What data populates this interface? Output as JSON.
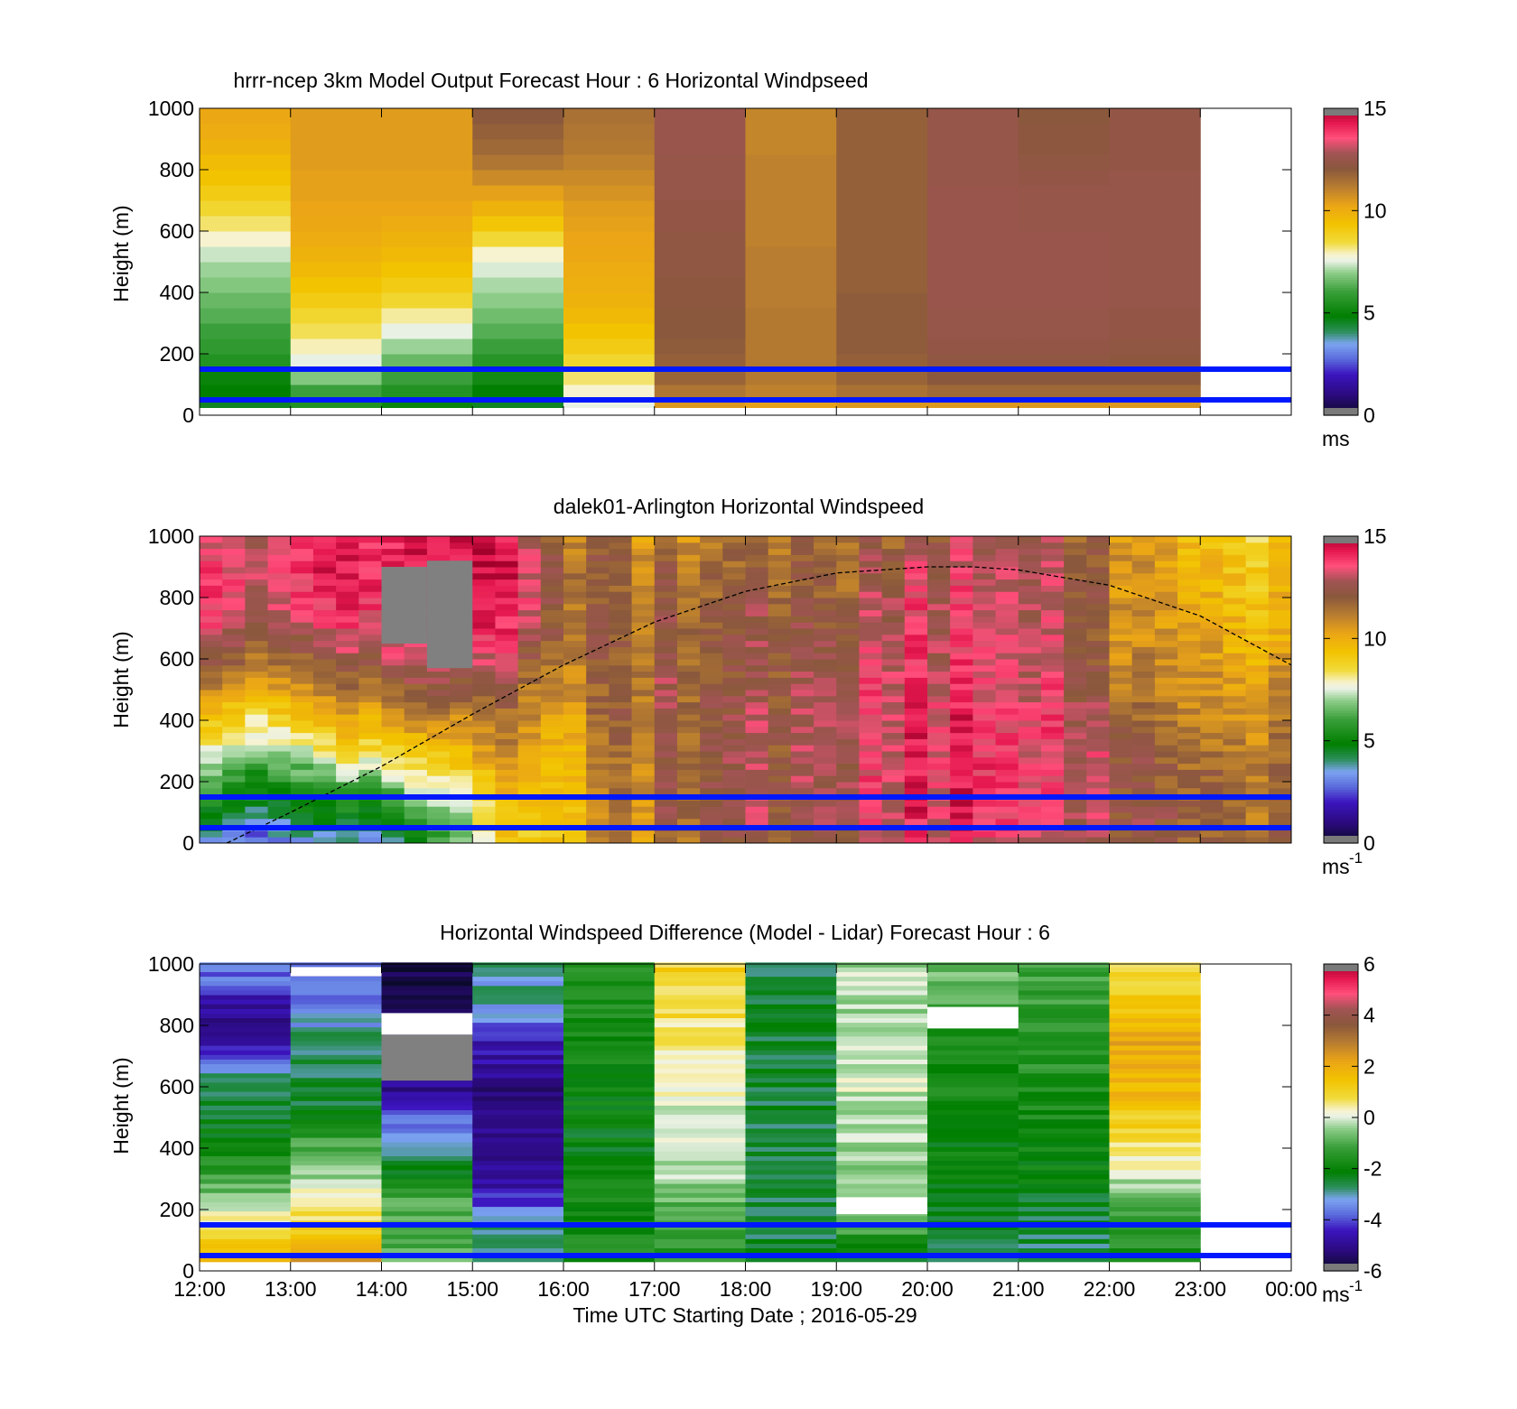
{
  "chart_data": [
    {
      "type": "heatmap",
      "title": "hrrr-ncep 3km Model Output   Forecast Hour : 6 Horizontal Windpseed",
      "ylabel": "Height (m)",
      "xlabel": "",
      "ylim": [
        0,
        1000
      ],
      "yticks": [
        "0",
        "200",
        "400",
        "600",
        "800",
        "1000"
      ],
      "xlim_hours": [
        12,
        24
      ],
      "colorbar": {
        "ticks": [
          "0",
          "5",
          "10",
          "15"
        ],
        "unit": "ms",
        "unit_sup": "",
        "range": [
          0,
          15
        ]
      },
      "hlines_m": [
        150,
        50
      ],
      "heights_m": [
        50,
        100,
        150,
        200,
        250,
        300,
        350,
        400,
        450,
        500,
        550,
        600,
        650,
        700,
        750,
        800,
        850,
        900,
        950,
        1000
      ],
      "columns": [
        {
          "t": 12,
          "values": [
            4.5,
            4.8,
            5.0,
            5.5,
            5.8,
            6.0,
            6.3,
            6.5,
            6.8,
            7.0,
            7.3,
            7.8,
            8.2,
            8.6,
            9.0,
            9.3,
            9.5,
            9.8,
            10.0,
            10.1
          ]
        },
        {
          "t": 13,
          "values": [
            5.5,
            6.0,
            6.8,
            7.5,
            7.9,
            8.3,
            8.6,
            9.0,
            9.3,
            9.6,
            9.8,
            10.0,
            10.1,
            10.2,
            10.3,
            10.3,
            10.4,
            10.4,
            10.4,
            10.4
          ]
        },
        {
          "t": 14,
          "values": [
            5.0,
            5.5,
            6.0,
            6.5,
            7.0,
            7.5,
            8.0,
            8.6,
            9.0,
            9.3,
            9.6,
            9.8,
            10.0,
            10.2,
            10.3,
            10.3,
            10.4,
            10.4,
            10.4,
            10.4
          ]
        },
        {
          "t": 15,
          "values": [
            4.5,
            4.8,
            5.2,
            5.6,
            6.0,
            6.3,
            6.6,
            6.9,
            7.1,
            7.4,
            7.8,
            8.5,
            9.2,
            9.8,
            10.3,
            10.8,
            11.3,
            11.6,
            11.8,
            12.0
          ]
        },
        {
          "t": 16,
          "values": [
            7.5,
            7.8,
            8.2,
            8.6,
            9.0,
            9.3,
            9.6,
            9.8,
            9.9,
            10.0,
            10.1,
            10.2,
            10.3,
            10.4,
            10.6,
            10.8,
            11.0,
            11.2,
            11.3,
            11.4
          ]
        },
        {
          "t": 17,
          "values": [
            10.5,
            11.3,
            11.7,
            11.8,
            11.9,
            12.0,
            12.0,
            12.1,
            12.1,
            12.2,
            12.2,
            12.2,
            12.3,
            12.3,
            12.4,
            12.4,
            12.4,
            12.5,
            12.5,
            12.5
          ]
        },
        {
          "t": 18,
          "values": [
            10.3,
            11.0,
            11.2,
            11.2,
            11.2,
            11.2,
            11.2,
            11.1,
            11.1,
            11.1,
            11.1,
            11.0,
            11.0,
            11.0,
            11.0,
            11.0,
            11.0,
            10.9,
            10.9,
            10.9
          ]
        },
        {
          "t": 19,
          "values": [
            10.5,
            11.4,
            11.7,
            11.8,
            11.9,
            11.9,
            11.9,
            11.9,
            11.8,
            11.8,
            11.8,
            11.8,
            11.8,
            11.8,
            11.8,
            11.8,
            11.8,
            11.8,
            11.8,
            11.8
          ]
        },
        {
          "t": 20,
          "values": [
            10.5,
            11.6,
            12.0,
            12.2,
            12.3,
            12.4,
            12.4,
            12.5,
            12.5,
            12.5,
            12.5,
            12.5,
            12.5,
            12.5,
            12.5,
            12.4,
            12.4,
            12.4,
            12.4,
            12.4
          ]
        },
        {
          "t": 21,
          "values": [
            10.5,
            11.6,
            12.0,
            12.2,
            12.3,
            12.4,
            12.4,
            12.5,
            12.5,
            12.5,
            12.5,
            12.5,
            12.4,
            12.4,
            12.4,
            12.3,
            12.2,
            12.1,
            12.1,
            12.0
          ]
        },
        {
          "t": 22,
          "values": [
            10.5,
            11.6,
            12.0,
            12.1,
            12.2,
            12.3,
            12.3,
            12.4,
            12.4,
            12.4,
            12.4,
            12.4,
            12.4,
            12.4,
            12.4,
            12.4,
            12.3,
            12.3,
            12.3,
            12.3
          ]
        }
      ]
    },
    {
      "type": "heatmap",
      "title": "dalek01-Arlington  Horizontal Windspeed",
      "ylabel": "Height (m)",
      "xlabel": "",
      "ylim": [
        0,
        1000
      ],
      "yticks": [
        "0",
        "200",
        "400",
        "600",
        "800",
        "1000"
      ],
      "xlim_hours": [
        12,
        24
      ],
      "colorbar": {
        "ticks": [
          "0",
          "5",
          "10",
          "15"
        ],
        "unit": "ms",
        "unit_sup": "-1",
        "range": [
          0,
          15
        ]
      },
      "hlines_m": [
        150,
        50
      ],
      "height_profile_m": [
        0,
        100,
        200,
        300,
        400,
        500,
        600,
        700,
        800,
        900,
        1000
      ],
      "time_profile": [
        {
          "t": 12.0,
          "values": [
            3.0,
            4.5,
            6.0,
            7.5,
            9.0,
            10.5,
            12.0,
            13.0,
            13.5,
            13.5,
            13.0
          ]
        },
        {
          "t": 12.5,
          "values": [
            3.0,
            4.5,
            6.0,
            7.5,
            9.0,
            10.5,
            12.0,
            13.0,
            13.5,
            13.5,
            13.0
          ]
        },
        {
          "t": 13.0,
          "values": [
            3.0,
            4.5,
            5.5,
            7.0,
            8.5,
            10.0,
            11.5,
            12.5,
            13.5,
            13.5,
            13.5
          ]
        },
        {
          "t": 13.5,
          "values": [
            3.0,
            4.5,
            6.0,
            8.0,
            9.5,
            11.0,
            12.0,
            13.0,
            13.5,
            14.0,
            13.5
          ]
        },
        {
          "t": 14.0,
          "values": [
            4.0,
            5.5,
            7.0,
            9.0,
            10.5,
            11.5,
            13.0,
            14.0,
            14.5,
            14.5,
            14.0
          ]
        },
        {
          "t": 14.5,
          "values": [
            5.5,
            6.5,
            8.0,
            9.5,
            11.0,
            12.5,
            13.5,
            14.5,
            14.5,
            14.5,
            14.5
          ]
        },
        {
          "t": 15.0,
          "values": [
            7.0,
            7.5,
            8.5,
            10.0,
            11.0,
            12.0,
            13.0,
            14.0,
            14.0,
            14.5,
            14.5
          ]
        },
        {
          "t": 15.5,
          "values": [
            9.0,
            9.5,
            10.0,
            10.5,
            11.0,
            11.5,
            12.5,
            13.5,
            14.0,
            14.0,
            13.5
          ]
        },
        {
          "t": 16.0,
          "values": [
            9.5,
            9.5,
            10.0,
            10.0,
            10.5,
            11.0,
            11.5,
            12.0,
            12.0,
            12.0,
            11.5
          ]
        },
        {
          "t": 16.5,
          "values": [
            10.5,
            11.0,
            11.0,
            11.0,
            11.5,
            11.5,
            11.5,
            11.5,
            11.5,
            11.5,
            11.5
          ]
        },
        {
          "t": 17.0,
          "values": [
            11.0,
            11.5,
            11.5,
            11.5,
            12.0,
            12.0,
            12.0,
            11.5,
            11.5,
            11.5,
            11.0
          ]
        },
        {
          "t": 17.5,
          "values": [
            11.5,
            12.0,
            12.0,
            12.0,
            12.0,
            12.0,
            12.0,
            12.0,
            11.5,
            11.5,
            11.0
          ]
        },
        {
          "t": 18.0,
          "values": [
            12.0,
            12.5,
            12.5,
            12.5,
            12.5,
            12.0,
            12.0,
            12.0,
            12.0,
            11.5,
            11.5
          ]
        },
        {
          "t": 18.5,
          "values": [
            12.0,
            12.5,
            12.5,
            12.5,
            12.5,
            12.5,
            12.5,
            12.0,
            12.0,
            12.0,
            11.5
          ]
        },
        {
          "t": 19.0,
          "values": [
            12.5,
            13.0,
            13.0,
            13.0,
            13.0,
            13.0,
            12.5,
            12.5,
            12.0,
            12.0,
            12.0
          ]
        },
        {
          "t": 19.5,
          "values": [
            13.0,
            13.5,
            13.5,
            13.5,
            13.5,
            13.5,
            13.5,
            13.0,
            13.0,
            12.5,
            12.0
          ]
        },
        {
          "t": 20.0,
          "values": [
            13.5,
            14.0,
            14.0,
            14.0,
            14.0,
            14.0,
            13.5,
            13.5,
            13.5,
            13.0,
            12.5
          ]
        },
        {
          "t": 20.5,
          "values": [
            13.5,
            14.0,
            14.0,
            14.0,
            14.0,
            13.5,
            13.5,
            13.5,
            13.5,
            13.0,
            13.0
          ]
        },
        {
          "t": 21.0,
          "values": [
            13.5,
            14.0,
            14.0,
            14.0,
            14.0,
            13.5,
            13.5,
            13.5,
            13.5,
            13.5,
            13.0
          ]
        },
        {
          "t": 21.5,
          "values": [
            13.0,
            13.5,
            13.5,
            13.5,
            13.5,
            13.5,
            13.0,
            13.0,
            13.0,
            13.0,
            12.5
          ]
        },
        {
          "t": 22.0,
          "values": [
            12.5,
            13.0,
            13.0,
            13.0,
            12.5,
            12.0,
            11.5,
            11.5,
            11.5,
            11.5,
            11.5
          ]
        },
        {
          "t": 22.5,
          "values": [
            12.0,
            12.5,
            12.0,
            12.0,
            11.5,
            11.0,
            11.0,
            10.5,
            10.5,
            10.5,
            10.5
          ]
        },
        {
          "t": 23.0,
          "values": [
            12.0,
            12.0,
            12.0,
            11.5,
            11.0,
            11.0,
            10.5,
            10.5,
            10.0,
            10.0,
            9.5
          ]
        },
        {
          "t": 23.5,
          "values": [
            11.5,
            11.5,
            11.5,
            11.5,
            11.0,
            10.5,
            10.0,
            10.0,
            9.5,
            9.5,
            9.0
          ]
        },
        {
          "t": 23.8,
          "values": [
            11.5,
            11.5,
            11.5,
            11.0,
            11.0,
            10.5,
            10.0,
            9.5,
            9.5,
            9.0,
            9.0
          ]
        }
      ],
      "missing_blocks": [
        {
          "t0": 14.0,
          "t1": 14.5,
          "z0": 650,
          "z1": 900
        },
        {
          "t0": 14.5,
          "t1": 15.0,
          "z0": 570,
          "z1": 920
        }
      ],
      "boundary_curve": {
        "x_hours": [
          12.3,
          13.0,
          14.0,
          15.0,
          16.0,
          17.0,
          18.0,
          19.0,
          20.0,
          20.5,
          21.0,
          22.0,
          23.0,
          24.0
        ],
        "y_m": [
          0,
          100,
          250,
          420,
          580,
          720,
          820,
          880,
          900,
          900,
          890,
          840,
          740,
          580
        ]
      }
    },
    {
      "type": "heatmap",
      "title": "Horizontal Windspeed Difference (Model - Lidar) Forecast Hour : 6",
      "ylabel": "Height (m)",
      "xlabel": "Time UTC  Starting Date ; 2016-05-29",
      "ylim": [
        0,
        1000
      ],
      "yticks": [
        "0",
        "200",
        "400",
        "600",
        "800",
        "1000"
      ],
      "xticks": [
        "12:00",
        "13:00",
        "14:00",
        "15:00",
        "16:00",
        "17:00",
        "18:00",
        "19:00",
        "20:00",
        "21:00",
        "22:00",
        "23:00",
        "00:00"
      ],
      "xlim_hours": [
        12,
        24
      ],
      "colorbar": {
        "ticks": [
          "-6",
          "-4",
          "-2",
          "0",
          "2",
          "4",
          "6"
        ],
        "unit": "ms",
        "unit_sup": "-1",
        "range": [
          -6,
          6
        ]
      },
      "hlines_m": [
        150,
        50
      ],
      "height_profile_m": [
        50,
        150,
        250,
        350,
        450,
        550,
        650,
        750,
        850,
        950
      ],
      "columns": [
        {
          "t": 12,
          "values": [
            1.5,
            0.5,
            -0.8,
            -1.5,
            -2.2,
            -2.7,
            -3.0,
            -4.8,
            -5.0,
            -3.8
          ]
        },
        {
          "t": 13,
          "values": [
            2.2,
            1.0,
            0.2,
            -0.8,
            -1.4,
            -2.5,
            -2.8,
            -2.8,
            -3.5,
            -4.0
          ]
        },
        {
          "t": 14,
          "values": [
            -1.0,
            -1.0,
            -1.2,
            -2.5,
            -3.5,
            -4.5,
            -5.5,
            -5.8,
            -5.8,
            -5.8
          ]
        },
        {
          "t": 15,
          "values": [
            -2.8,
            -3.0,
            -4.5,
            -5.0,
            -5.0,
            -5.2,
            -5.0,
            -4.5,
            -3.2,
            -3.0
          ]
        },
        {
          "t": 16,
          "values": [
            -1.8,
            -1.8,
            -2.0,
            -2.1,
            -2.2,
            -2.1,
            -2.0,
            -2.0,
            -1.8,
            -1.5
          ]
        },
        {
          "t": 17,
          "values": [
            -1.5,
            -1.3,
            -0.6,
            -0.3,
            -0.2,
            0.0,
            0.3,
            0.5,
            0.8,
            1.0
          ]
        },
        {
          "t": 18,
          "values": [
            -2.5,
            -2.5,
            -2.5,
            -2.5,
            -2.5,
            -2.5,
            -2.5,
            -2.5,
            -2.5,
            -2.8
          ]
        },
        {
          "t": 19,
          "values": [
            -2.5,
            -1.0,
            -0.6,
            -0.4,
            -0.3,
            -0.2,
            -0.1,
            -0.2,
            -0.3,
            -0.3
          ]
        },
        {
          "t": 20,
          "values": [
            -2.8,
            -2.6,
            -2.4,
            -2.1,
            -2.0,
            -1.9,
            -1.8,
            -1.7,
            -1.2,
            -0.8
          ]
        },
        {
          "t": 21,
          "values": [
            -2.8,
            -2.5,
            -2.3,
            -2.0,
            -1.9,
            -1.7,
            -1.6,
            -1.5,
            -1.4,
            -1.3
          ]
        },
        {
          "t": 22,
          "values": [
            -1.8,
            -1.2,
            -0.8,
            0.2,
            0.8,
            1.5,
            1.8,
            2.0,
            1.5,
            0.8
          ]
        }
      ],
      "missing_blocks": [
        {
          "t0": 13.0,
          "t1": 14.0,
          "z0": 960,
          "z1": 990
        },
        {
          "t0": 14.0,
          "t1": 15.0,
          "z0": 770,
          "z1": 840
        },
        {
          "t0": 19.0,
          "t1": 20.0,
          "z0": 185,
          "z1": 240
        },
        {
          "t0": 20.0,
          "t1": 21.0,
          "z0": 790,
          "z1": 860
        }
      ],
      "gray_blocks": [
        {
          "t0": 14.0,
          "t1": 15.0,
          "z0": 620,
          "z1": 770
        }
      ]
    }
  ],
  "colorscale_stops": [
    {
      "p": 0.0,
      "color": "#0c0a2c"
    },
    {
      "p": 0.06,
      "color": "#2a0a7a"
    },
    {
      "p": 0.13,
      "color": "#3c14bf"
    },
    {
      "p": 0.18,
      "color": "#5a6bdc"
    },
    {
      "p": 0.23,
      "color": "#7ca4f0"
    },
    {
      "p": 0.27,
      "color": "#2b8e5a"
    },
    {
      "p": 0.32,
      "color": "#007f00"
    },
    {
      "p": 0.4,
      "color": "#3a9f3a"
    },
    {
      "p": 0.46,
      "color": "#8ccc88"
    },
    {
      "p": 0.5,
      "color": "#e9f1e4"
    },
    {
      "p": 0.52,
      "color": "#f7f3d0"
    },
    {
      "p": 0.56,
      "color": "#f1db3c"
    },
    {
      "p": 0.62,
      "color": "#f2c300"
    },
    {
      "p": 0.68,
      "color": "#eba516"
    },
    {
      "p": 0.74,
      "color": "#b87d30"
    },
    {
      "p": 0.8,
      "color": "#8a583c"
    },
    {
      "p": 0.85,
      "color": "#a15454"
    },
    {
      "p": 0.9,
      "color": "#ff4f7b"
    },
    {
      "p": 0.95,
      "color": "#e5184f"
    },
    {
      "p": 1.0,
      "color": "#a0002a"
    }
  ],
  "colors": {
    "boundary_line": "#0018ff",
    "missing": "#808080",
    "axis": "#000000"
  }
}
